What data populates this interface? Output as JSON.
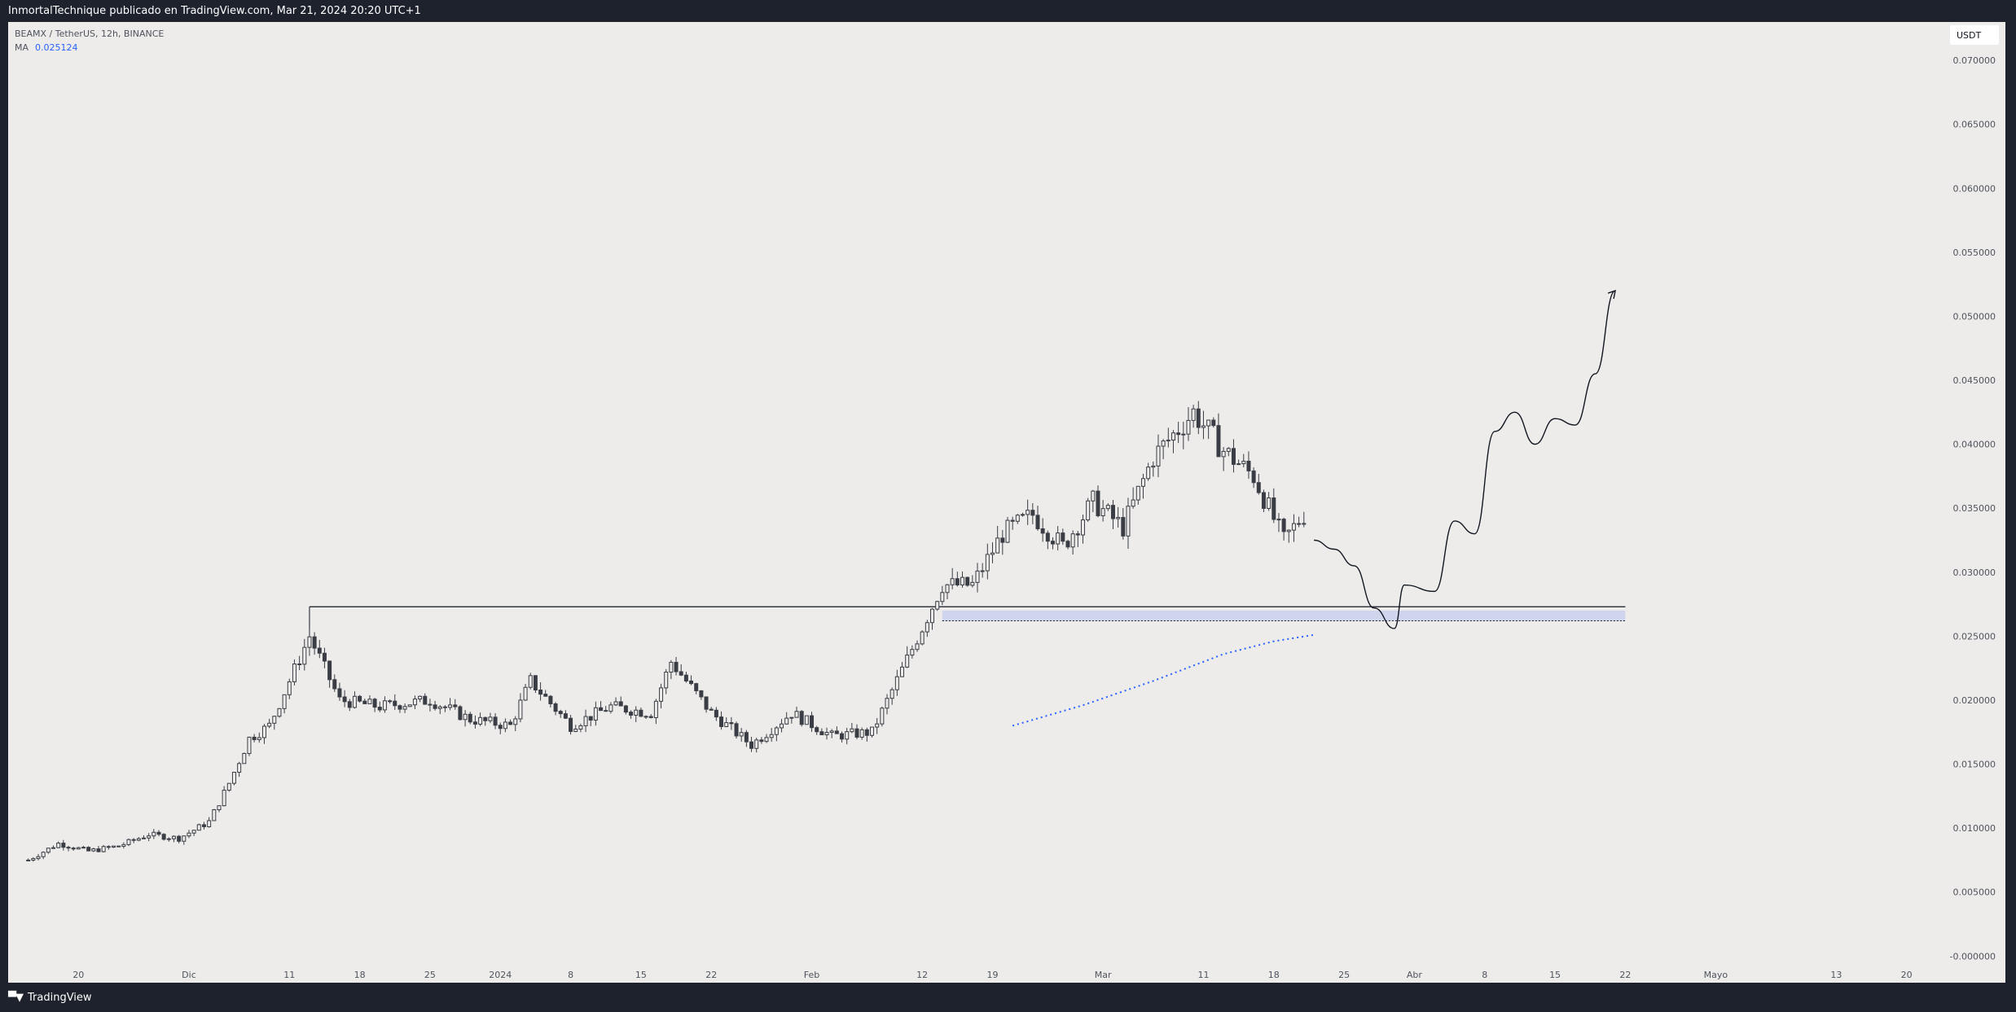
{
  "header": {
    "publish_line": "InmortalTechnique publicado en TradingView.com, Mar 21, 2024 20:20 UTC+1"
  },
  "legend": {
    "symbol_line": "BEAMX / TetherUS, 12h, BINANCE",
    "ma_label": "MA",
    "ma_value": "0.025124"
  },
  "currency": "USDT",
  "footer": {
    "brand": "TradingView",
    "logo_icon": "tradingview-logo-icon"
  },
  "colors": {
    "background": "#edecea",
    "frame": "#1e222d",
    "candle": "#3a3d45",
    "ma": "#2962ff",
    "zone": "#c5d0ee"
  },
  "chart_data": {
    "type": "candlestick",
    "symbol": "BEAMX / TetherUS",
    "interval": "12h",
    "exchange": "BINANCE",
    "y_axis": {
      "range": [
        -0.001,
        0.073
      ],
      "ticks": [
        "0.070000",
        "0.065000",
        "0.060000",
        "0.055000",
        "0.050000",
        "0.045000",
        "0.040000",
        "0.035000",
        "0.030000",
        "0.025000",
        "0.020000",
        "0.015000",
        "0.010000",
        "0.005000",
        "-0.000000"
      ]
    },
    "x_axis": {
      "range": [
        "2023-11-13",
        "2024-05-24"
      ],
      "ticks": [
        {
          "date": "2023-11-20",
          "label": "20"
        },
        {
          "date": "2023-12-01",
          "label": "Dic"
        },
        {
          "date": "2023-12-11",
          "label": "11"
        },
        {
          "date": "2023-12-18",
          "label": "18"
        },
        {
          "date": "2023-12-25",
          "label": "25"
        },
        {
          "date": "2024-01-01",
          "label": "2024"
        },
        {
          "date": "2024-01-08",
          "label": "8"
        },
        {
          "date": "2024-01-15",
          "label": "15"
        },
        {
          "date": "2024-01-22",
          "label": "22"
        },
        {
          "date": "2024-02-01",
          "label": "Feb"
        },
        {
          "date": "2024-02-12",
          "label": "12"
        },
        {
          "date": "2024-02-19",
          "label": "19"
        },
        {
          "date": "2024-03-01",
          "label": "Mar"
        },
        {
          "date": "2024-03-11",
          "label": "11"
        },
        {
          "date": "2024-03-18",
          "label": "18"
        },
        {
          "date": "2024-03-25",
          "label": "25"
        },
        {
          "date": "2024-04-01",
          "label": "Abr"
        },
        {
          "date": "2024-04-08",
          "label": "8"
        },
        {
          "date": "2024-04-15",
          "label": "15"
        },
        {
          "date": "2024-04-22",
          "label": "22"
        },
        {
          "date": "2024-05-01",
          "label": "Mayo"
        },
        {
          "date": "2024-05-13",
          "label": "13"
        },
        {
          "date": "2024-05-20",
          "label": "20"
        }
      ]
    },
    "price_path": [
      [
        "2023-11-15",
        0.0075
      ],
      [
        "2023-11-18",
        0.0088
      ],
      [
        "2023-11-21",
        0.0082
      ],
      [
        "2023-11-24",
        0.0086
      ],
      [
        "2023-11-27",
        0.0095
      ],
      [
        "2023-11-30",
        0.0092
      ],
      [
        "2023-12-03",
        0.0105
      ],
      [
        "2023-12-05",
        0.0135
      ],
      [
        "2023-12-07",
        0.017
      ],
      [
        "2023-12-09",
        0.018
      ],
      [
        "2023-12-11",
        0.0215
      ],
      [
        "2023-12-13",
        0.025
      ],
      [
        "2023-12-16",
        0.02
      ],
      [
        "2023-12-20",
        0.0195
      ],
      [
        "2023-12-25",
        0.02
      ],
      [
        "2023-12-29",
        0.0185
      ],
      [
        "2024-01-02",
        0.018
      ],
      [
        "2024-01-04",
        0.0215
      ],
      [
        "2024-01-08",
        0.018
      ],
      [
        "2024-01-12",
        0.0195
      ],
      [
        "2024-01-16",
        0.019
      ],
      [
        "2024-01-18",
        0.023
      ],
      [
        "2024-01-22",
        0.019
      ],
      [
        "2024-01-26",
        0.0165
      ],
      [
        "2024-01-30",
        0.019
      ],
      [
        "2024-02-03",
        0.0172
      ],
      [
        "2024-02-07",
        0.0175
      ],
      [
        "2024-02-11",
        0.024
      ],
      [
        "2024-02-14",
        0.029
      ],
      [
        "2024-02-17",
        0.029
      ],
      [
        "2024-02-20",
        0.033
      ],
      [
        "2024-02-23",
        0.0345
      ],
      [
        "2024-02-26",
        0.032
      ],
      [
        "2024-02-29",
        0.0355
      ],
      [
        "2024-03-03",
        0.0335
      ],
      [
        "2024-03-06",
        0.039
      ],
      [
        "2024-03-10",
        0.0425
      ],
      [
        "2024-03-13",
        0.0395
      ],
      [
        "2024-03-16",
        0.0375
      ],
      [
        "2024-03-19",
        0.0325
      ],
      [
        "2024-03-21",
        0.0345
      ]
    ],
    "ma_path": [
      [
        "2024-02-21",
        0.018
      ],
      [
        "2024-02-28",
        0.0196
      ],
      [
        "2024-03-06",
        0.0215
      ],
      [
        "2024-03-13",
        0.0236
      ],
      [
        "2024-03-18",
        0.0246
      ],
      [
        "2024-03-22",
        0.0251
      ]
    ],
    "resistance_line": {
      "from": "2023-12-13",
      "to": "2024-04-22",
      "price": 0.0273
    },
    "support_zone": {
      "from": "2024-02-14",
      "to": "2024-04-22",
      "top": 0.027,
      "bottom": 0.0262
    },
    "projection_path": [
      [
        "2024-03-22",
        0.0325
      ],
      [
        "2024-03-24",
        0.0318
      ],
      [
        "2024-03-26",
        0.0305
      ],
      [
        "2024-03-28",
        0.0272
      ],
      [
        "2024-03-30",
        0.0256
      ],
      [
        "2024-03-31",
        0.029
      ],
      [
        "2024-04-03",
        0.0285
      ],
      [
        "2024-04-05",
        0.034
      ],
      [
        "2024-04-07",
        0.033
      ],
      [
        "2024-04-09",
        0.041
      ],
      [
        "2024-04-11",
        0.0425
      ],
      [
        "2024-04-13",
        0.04
      ],
      [
        "2024-04-15",
        0.042
      ],
      [
        "2024-04-17",
        0.0415
      ],
      [
        "2024-04-19",
        0.0455
      ],
      [
        "2024-04-21",
        0.052
      ]
    ]
  }
}
